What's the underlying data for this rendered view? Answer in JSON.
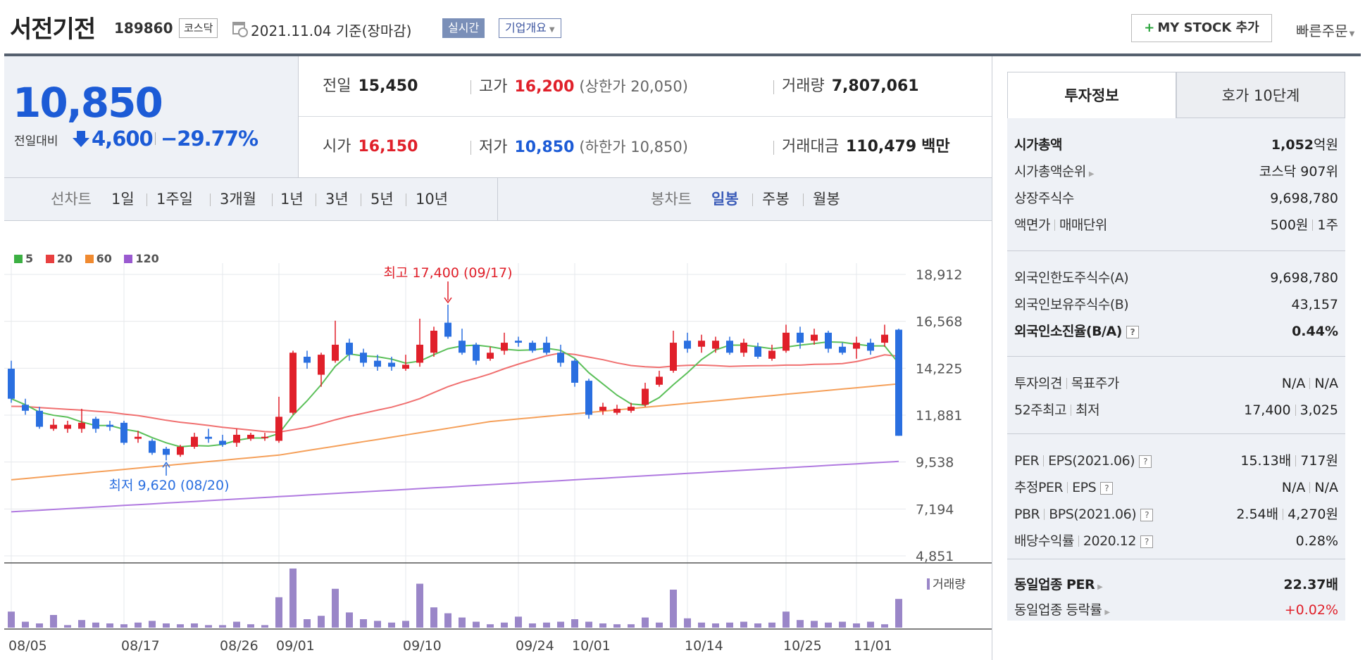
{
  "header": {
    "company_name": "서전기전",
    "code": "189860",
    "market": "코스닥",
    "date_text": "2021.11.04 기준(장마감)",
    "realtime_label": "실시간",
    "overview_label": "기업개요",
    "mystock_label": "MY STOCK 추가",
    "quick_order_label": "빠른주문"
  },
  "price": {
    "current": "10,850",
    "change_label": "전일대비",
    "change_value": "4,600",
    "change_rate": "−29.77%"
  },
  "stats": {
    "prev_close_label": "전일",
    "prev_close": "15,450",
    "high_label": "고가",
    "high": "16,200",
    "upper_limit": "(상한가 20,050)",
    "volume_label": "거래량",
    "volume": "7,807,061",
    "open_label": "시가",
    "open": "16,150",
    "low_label": "저가",
    "low": "10,850",
    "lower_limit": "(하한가 10,850)",
    "amount_label": "거래대금",
    "amount": "110,479",
    "amount_unit": "백만"
  },
  "period_bar": {
    "line_chart_label": "선차트",
    "periods": [
      "1일",
      "1주일",
      "3개월",
      "1년",
      "3년",
      "5년",
      "10년"
    ],
    "candle_label": "봉차트",
    "candles": [
      "일봉",
      "주봉",
      "월봉"
    ],
    "active_candle": "일봉"
  },
  "chart_data": {
    "type": "candlestick",
    "legend": [
      {
        "name": "5",
        "color": "#3cb043"
      },
      {
        "name": "20",
        "color": "#e84040"
      },
      {
        "name": "60",
        "color": "#f08a30"
      },
      {
        "name": "120",
        "color": "#9a5ad0"
      }
    ],
    "y_ticks": [
      "18,912",
      "16,568",
      "14,225",
      "11,881",
      "9,538",
      "7,194",
      "4,851"
    ],
    "ylim": [
      4851,
      18912
    ],
    "x_ticks": [
      "08/05",
      "08/17",
      "08/26",
      "09/01",
      "09/10",
      "09/24",
      "10/01",
      "10/14",
      "10/25",
      "11/01"
    ],
    "x_tick_index": [
      0,
      8,
      15,
      19,
      28,
      36,
      40,
      48,
      55,
      60
    ],
    "high_annotation": "최고 17,400 (09/17)",
    "low_annotation": "최저 9,620 (08/20)",
    "high_index": 31,
    "low_index": 11,
    "volume_label": "거래량",
    "candles": [
      {
        "o": 14200,
        "c": 12700,
        "h": 14600,
        "l": 12500,
        "v": 19
      },
      {
        "o": 12400,
        "c": 12100,
        "h": 12700,
        "l": 11900,
        "v": 7
      },
      {
        "o": 12100,
        "c": 11300,
        "h": 12300,
        "l": 11200,
        "v": 5
      },
      {
        "o": 11200,
        "c": 11400,
        "h": 11700,
        "l": 11100,
        "v": 15
      },
      {
        "o": 11200,
        "c": 11400,
        "h": 11600,
        "l": 11000,
        "v": 3
      },
      {
        "o": 11200,
        "c": 11500,
        "h": 12200,
        "l": 11000,
        "v": 9
      },
      {
        "o": 11700,
        "c": 11200,
        "h": 11800,
        "l": 11000,
        "v": 6
      },
      {
        "o": 11400,
        "c": 11300,
        "h": 11600,
        "l": 11100,
        "v": 5
      },
      {
        "o": 11500,
        "c": 10500,
        "h": 11600,
        "l": 10400,
        "v": 4
      },
      {
        "o": 10700,
        "c": 10800,
        "h": 11100,
        "l": 10500,
        "v": 6
      },
      {
        "o": 10600,
        "c": 10000,
        "h": 10700,
        "l": 9900,
        "v": 8
      },
      {
        "o": 10200,
        "c": 9900,
        "h": 10300,
        "l": 9620,
        "v": 5
      },
      {
        "o": 9900,
        "c": 10300,
        "h": 10400,
        "l": 9800,
        "v": 4
      },
      {
        "o": 10300,
        "c": 10800,
        "h": 11000,
        "l": 10200,
        "v": 5
      },
      {
        "o": 10800,
        "c": 10700,
        "h": 11200,
        "l": 10500,
        "v": 3
      },
      {
        "o": 10600,
        "c": 10400,
        "h": 10900,
        "l": 10300,
        "v": 3
      },
      {
        "o": 10500,
        "c": 10900,
        "h": 11200,
        "l": 10300,
        "v": 7
      },
      {
        "o": 10700,
        "c": 10900,
        "h": 11000,
        "l": 10600,
        "v": 4
      },
      {
        "o": 10800,
        "c": 10800,
        "h": 11000,
        "l": 10600,
        "v": 3
      },
      {
        "o": 10600,
        "c": 11800,
        "h": 12800,
        "l": 10500,
        "v": 36
      },
      {
        "o": 12000,
        "c": 15000,
        "h": 15100,
        "l": 11900,
        "v": 70
      },
      {
        "o": 14800,
        "c": 14500,
        "h": 15100,
        "l": 14200,
        "v": 10
      },
      {
        "o": 13900,
        "c": 14900,
        "h": 15000,
        "l": 13300,
        "v": 14
      },
      {
        "o": 14600,
        "c": 15400,
        "h": 16600,
        "l": 14500,
        "v": 46
      },
      {
        "o": 15500,
        "c": 14900,
        "h": 15700,
        "l": 14600,
        "v": 18
      },
      {
        "o": 15000,
        "c": 14500,
        "h": 15200,
        "l": 14300,
        "v": 10
      },
      {
        "o": 14600,
        "c": 14300,
        "h": 14900,
        "l": 14100,
        "v": 8
      },
      {
        "o": 14500,
        "c": 14300,
        "h": 14800,
        "l": 14100,
        "v": 6
      },
      {
        "o": 14200,
        "c": 14400,
        "h": 14900,
        "l": 14100,
        "v": 8
      },
      {
        "o": 14500,
        "c": 15400,
        "h": 16700,
        "l": 14300,
        "v": 52
      },
      {
        "o": 15000,
        "c": 16100,
        "h": 16300,
        "l": 14800,
        "v": 24
      },
      {
        "o": 16500,
        "c": 15800,
        "h": 17400,
        "l": 15700,
        "v": 17
      },
      {
        "o": 15600,
        "c": 15000,
        "h": 16200,
        "l": 14900,
        "v": 12
      },
      {
        "o": 15400,
        "c": 14600,
        "h": 15500,
        "l": 14400,
        "v": 7
      },
      {
        "o": 14700,
        "c": 15000,
        "h": 15300,
        "l": 14600,
        "v": 4
      },
      {
        "o": 15100,
        "c": 15500,
        "h": 16000,
        "l": 14900,
        "v": 6
      },
      {
        "o": 15600,
        "c": 15500,
        "h": 15800,
        "l": 15300,
        "v": 13
      },
      {
        "o": 15500,
        "c": 15100,
        "h": 15600,
        "l": 15000,
        "v": 5
      },
      {
        "o": 15500,
        "c": 15000,
        "h": 15800,
        "l": 14900,
        "v": 6
      },
      {
        "o": 15000,
        "c": 14500,
        "h": 15400,
        "l": 14300,
        "v": 7
      },
      {
        "o": 14600,
        "c": 13500,
        "h": 14700,
        "l": 13300,
        "v": 10
      },
      {
        "o": 13600,
        "c": 11900,
        "h": 13700,
        "l": 11700,
        "v": 7
      },
      {
        "o": 12100,
        "c": 12300,
        "h": 12500,
        "l": 11900,
        "v": 5
      },
      {
        "o": 12000,
        "c": 12200,
        "h": 12400,
        "l": 11900,
        "v": 4
      },
      {
        "o": 12100,
        "c": 12300,
        "h": 12500,
        "l": 12000,
        "v": 4
      },
      {
        "o": 12400,
        "c": 13200,
        "h": 13500,
        "l": 12300,
        "v": 12
      },
      {
        "o": 13400,
        "c": 13800,
        "h": 14100,
        "l": 13300,
        "v": 6
      },
      {
        "o": 14100,
        "c": 15500,
        "h": 16100,
        "l": 14000,
        "v": 45
      },
      {
        "o": 15600,
        "c": 15200,
        "h": 16000,
        "l": 15000,
        "v": 11
      },
      {
        "o": 15300,
        "c": 15600,
        "h": 15900,
        "l": 15000,
        "v": 6
      },
      {
        "o": 15200,
        "c": 15600,
        "h": 15800,
        "l": 15000,
        "v": 5
      },
      {
        "o": 15600,
        "c": 15000,
        "h": 15800,
        "l": 14900,
        "v": 6
      },
      {
        "o": 15000,
        "c": 15500,
        "h": 15700,
        "l": 14800,
        "v": 7
      },
      {
        "o": 15300,
        "c": 14800,
        "h": 15500,
        "l": 14700,
        "v": 5
      },
      {
        "o": 14700,
        "c": 15100,
        "h": 15400,
        "l": 14600,
        "v": 6
      },
      {
        "o": 15100,
        "c": 16000,
        "h": 16400,
        "l": 15000,
        "v": 19
      },
      {
        "o": 16000,
        "c": 15500,
        "h": 16300,
        "l": 15200,
        "v": 9
      },
      {
        "o": 15600,
        "c": 15900,
        "h": 16200,
        "l": 15400,
        "v": 8
      },
      {
        "o": 16000,
        "c": 15200,
        "h": 16100,
        "l": 15000,
        "v": 6
      },
      {
        "o": 15300,
        "c": 15000,
        "h": 15500,
        "l": 14900,
        "v": 7
      },
      {
        "o": 15200,
        "c": 15500,
        "h": 15800,
        "l": 14700,
        "v": 5
      },
      {
        "o": 15500,
        "c": 15100,
        "h": 15700,
        "l": 14900,
        "v": 7
      },
      {
        "o": 15500,
        "c": 15900,
        "h": 16400,
        "l": 15300,
        "v": 4
      },
      {
        "o": 16150,
        "c": 10850,
        "h": 16200,
        "l": 10850,
        "v": 34
      }
    ]
  },
  "tabs": {
    "active": "투자정보",
    "inactive": "호가 10단계"
  },
  "info": {
    "market_cap_label": "시가총액",
    "market_cap": "1,052",
    "market_cap_unit": "억원",
    "market_cap_rank_label": "시가총액순위",
    "market_cap_rank": "코스닥 907위",
    "listed_shares_label": "상장주식수",
    "listed_shares": "9,698,780",
    "par_label": "액면가",
    "unit_label": "매매단위",
    "par_value": "500원",
    "trade_unit": "1주",
    "foreign_limit_label": "외국인한도주식수(A)",
    "foreign_limit": "9,698,780",
    "foreign_hold_label": "외국인보유주식수(B)",
    "foreign_hold": "43,157",
    "foreign_ratio_label": "외국인소진율(B/A)",
    "foreign_ratio": "0.44%",
    "opinion_label": "투자의견",
    "target_label": "목표주가",
    "opinion": "N/A",
    "target": "N/A",
    "w52_high_label": "52주최고",
    "w52_low_label": "최저",
    "w52_high": "17,400",
    "w52_low": "3,025",
    "per_label": "PER",
    "eps_label": "EPS(2021.06)",
    "per": "15.13배",
    "eps": "717원",
    "est_per_label": "추정PER",
    "est_eps_label": "EPS",
    "est_per": "N/A",
    "est_eps": "N/A",
    "pbr_label": "PBR",
    "bps_label": "BPS(2021.06)",
    "pbr": "2.54배",
    "bps": "4,270원",
    "div_label": "배당수익률",
    "div_year": "2020.12",
    "div": "0.28%",
    "sector_per_label": "동일업종 PER",
    "sector_per": "22.37",
    "sector_per_unit": "배",
    "sector_change_label": "동일업종 등락률",
    "sector_change": "+0.02%"
  }
}
